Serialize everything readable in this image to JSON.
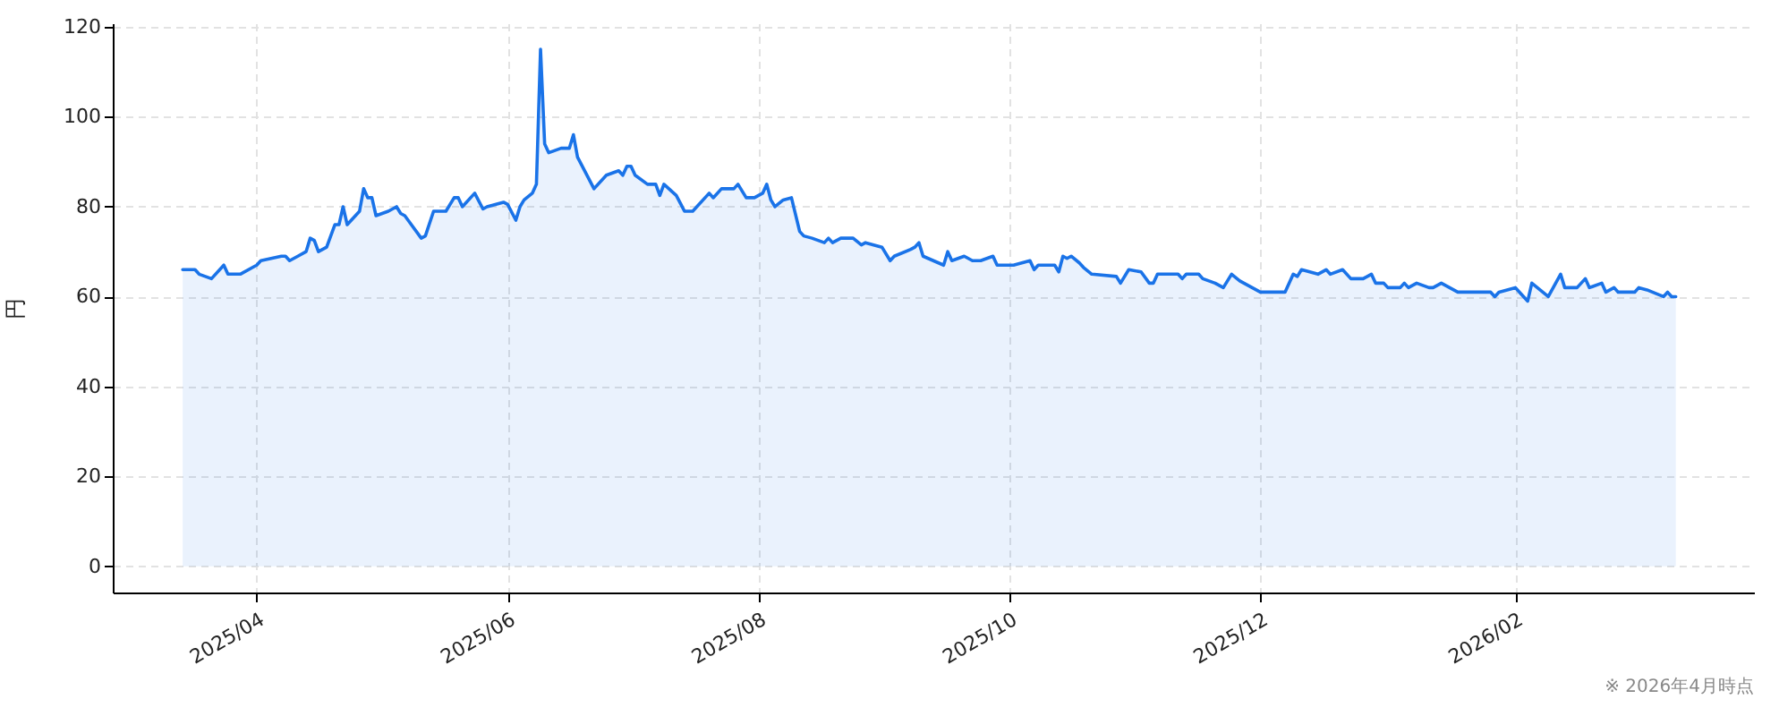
{
  "chart_data": {
    "type": "area",
    "ylabel": "円",
    "annotations": [
      "※ 2026年4月時点"
    ],
    "x": [
      "2025-03-14",
      "2025-03-17",
      "2025-03-18",
      "2025-03-21",
      "2025-03-24",
      "2025-03-25",
      "2025-03-28",
      "2025-04-01",
      "2025-04-02",
      "2025-04-07",
      "2025-04-08",
      "2025-04-09",
      "2025-04-11",
      "2025-04-13",
      "2025-04-14",
      "2025-04-15",
      "2025-04-16",
      "2025-04-18",
      "2025-04-20",
      "2025-04-21",
      "2025-04-22",
      "2025-04-23",
      "2025-04-26",
      "2025-04-27",
      "2025-04-28",
      "2025-04-29",
      "2025-04-30",
      "2025-05-03",
      "2025-05-05",
      "2025-05-06",
      "2025-05-07",
      "2025-05-11",
      "2025-05-12",
      "2025-05-14",
      "2025-05-15",
      "2025-05-17",
      "2025-05-19",
      "2025-05-20",
      "2025-05-21",
      "2025-05-24",
      "2025-05-26",
      "2025-05-27",
      "2025-05-29",
      "2025-05-31",
      "2025-06-01",
      "2025-06-03",
      "2025-06-04",
      "2025-06-05",
      "2025-06-07",
      "2025-06-08",
      "2025-06-09",
      "2025-06-10",
      "2025-06-11",
      "2025-06-14",
      "2025-06-16",
      "2025-06-17",
      "2025-06-18",
      "2025-06-22",
      "2025-06-25",
      "2025-06-28",
      "2025-06-29",
      "2025-06-30",
      "2025-07-01",
      "2025-07-02",
      "2025-07-05",
      "2025-07-07",
      "2025-07-08",
      "2025-07-09",
      "2025-07-12",
      "2025-07-14",
      "2025-07-16",
      "2025-07-20",
      "2025-07-21",
      "2025-07-23",
      "2025-07-26",
      "2025-07-27",
      "2025-07-29",
      "2025-07-31",
      "2025-08-02",
      "2025-08-03",
      "2025-08-04",
      "2025-08-05",
      "2025-08-07",
      "2025-08-09",
      "2025-08-11",
      "2025-08-12",
      "2025-08-14",
      "2025-08-17",
      "2025-08-18",
      "2025-08-19",
      "2025-08-21",
      "2025-08-24",
      "2025-08-26",
      "2025-08-27",
      "2025-08-31",
      "2025-09-02",
      "2025-09-03",
      "2025-09-07",
      "2025-09-08",
      "2025-09-09",
      "2025-09-10",
      "2025-09-15",
      "2025-09-16",
      "2025-09-17",
      "2025-09-20",
      "2025-09-22",
      "2025-09-24",
      "2025-09-27",
      "2025-09-28",
      "2025-10-02",
      "2025-10-06",
      "2025-10-07",
      "2025-10-08",
      "2025-10-12",
      "2025-10-13",
      "2025-10-14",
      "2025-10-15",
      "2025-10-16",
      "2025-10-18",
      "2025-10-19",
      "2025-10-21",
      "2025-10-27",
      "2025-10-28",
      "2025-10-30",
      "2025-11-02",
      "2025-11-04",
      "2025-11-05",
      "2025-11-06",
      "2025-11-11",
      "2025-11-12",
      "2025-11-13",
      "2025-11-16",
      "2025-11-17",
      "2025-11-20",
      "2025-11-22",
      "2025-11-24",
      "2025-11-26",
      "2025-11-29",
      "2025-12-01",
      "2025-12-07",
      "2025-12-09",
      "2025-12-10",
      "2025-12-11",
      "2025-12-15",
      "2025-12-17",
      "2025-12-18",
      "2025-12-21",
      "2025-12-23",
      "2025-12-26",
      "2025-12-28",
      "2025-12-29",
      "2025-12-31",
      "2026-01-01",
      "2026-01-04",
      "2026-01-05",
      "2026-01-06",
      "2026-01-08",
      "2026-01-11",
      "2026-01-12",
      "2026-01-14",
      "2026-01-16",
      "2026-01-18",
      "2026-01-26",
      "2026-01-27",
      "2026-01-28",
      "2026-02-01",
      "2026-02-02",
      "2026-02-04",
      "2026-02-05",
      "2026-02-07",
      "2026-02-09",
      "2026-02-12",
      "2026-02-13",
      "2026-02-16",
      "2026-02-18",
      "2026-02-19",
      "2026-02-22",
      "2026-02-23",
      "2026-02-25",
      "2026-02-26",
      "2026-03-02",
      "2026-03-03",
      "2026-03-05",
      "2026-03-09",
      "2026-03-10",
      "2026-03-11",
      "2026-03-12"
    ],
    "series": [
      {
        "color": "#1a73e8",
        "values": [
          66,
          66,
          65,
          64,
          67,
          65,
          65,
          67,
          68,
          69,
          69,
          68,
          69,
          70,
          73,
          72.5,
          70,
          71,
          76,
          76,
          80,
          76,
          79,
          84,
          82,
          82,
          78,
          79,
          80,
          78.5,
          78,
          73,
          73.5,
          79,
          79,
          79,
          82,
          82,
          80,
          83,
          79.5,
          80,
          80.5,
          81,
          80.5,
          77,
          80,
          81.5,
          83,
          85,
          115,
          94,
          92,
          93,
          93,
          96,
          91,
          84,
          87,
          88,
          87,
          89,
          89,
          87,
          85,
          85,
          82.5,
          85,
          82.5,
          79,
          79,
          83,
          82,
          84,
          84,
          85,
          82,
          82,
          83,
          85,
          81.5,
          80,
          81.5,
          82,
          74.5,
          73.5,
          73,
          72,
          73,
          72,
          73,
          73,
          71.5,
          72,
          71,
          68,
          69,
          70.5,
          71,
          72,
          69,
          67,
          70,
          68,
          69,
          68,
          68,
          69,
          67,
          67,
          68,
          66,
          67,
          67,
          65.5,
          69,
          68.5,
          69,
          67.5,
          66.5,
          65,
          64.5,
          63,
          66,
          65.5,
          63,
          63,
          65,
          65,
          64,
          65,
          65,
          64,
          63,
          62,
          65,
          63.5,
          62,
          61,
          61,
          65,
          64.5,
          66,
          65,
          66,
          65,
          66,
          64,
          64,
          65,
          63,
          63,
          62,
          62,
          63,
          62,
          63,
          62,
          62,
          63,
          62,
          61,
          61,
          60,
          61,
          62,
          61,
          59,
          63,
          61.5,
          60,
          65,
          62,
          62,
          64,
          62,
          63,
          61,
          62,
          61,
          61,
          62,
          61.5,
          60,
          61,
          60,
          60
        ]
      }
    ],
    "xlim": [
      "2025-02-25",
      "2026-03-31"
    ],
    "xticks": [
      {
        "value": "2025-04",
        "label": "2025/04"
      },
      {
        "value": "2025-06",
        "label": "2025/06"
      },
      {
        "value": "2025-08",
        "label": "2025/08"
      },
      {
        "value": "2025-10",
        "label": "2025/10"
      },
      {
        "value": "2025-12",
        "label": "2025/12"
      },
      {
        "value": "2026-02",
        "label": "2026/02"
      }
    ],
    "ylim": [
      -5.8,
      120.8
    ],
    "yticks": [
      0,
      20,
      40,
      60,
      80,
      100,
      120
    ],
    "grid": true
  }
}
